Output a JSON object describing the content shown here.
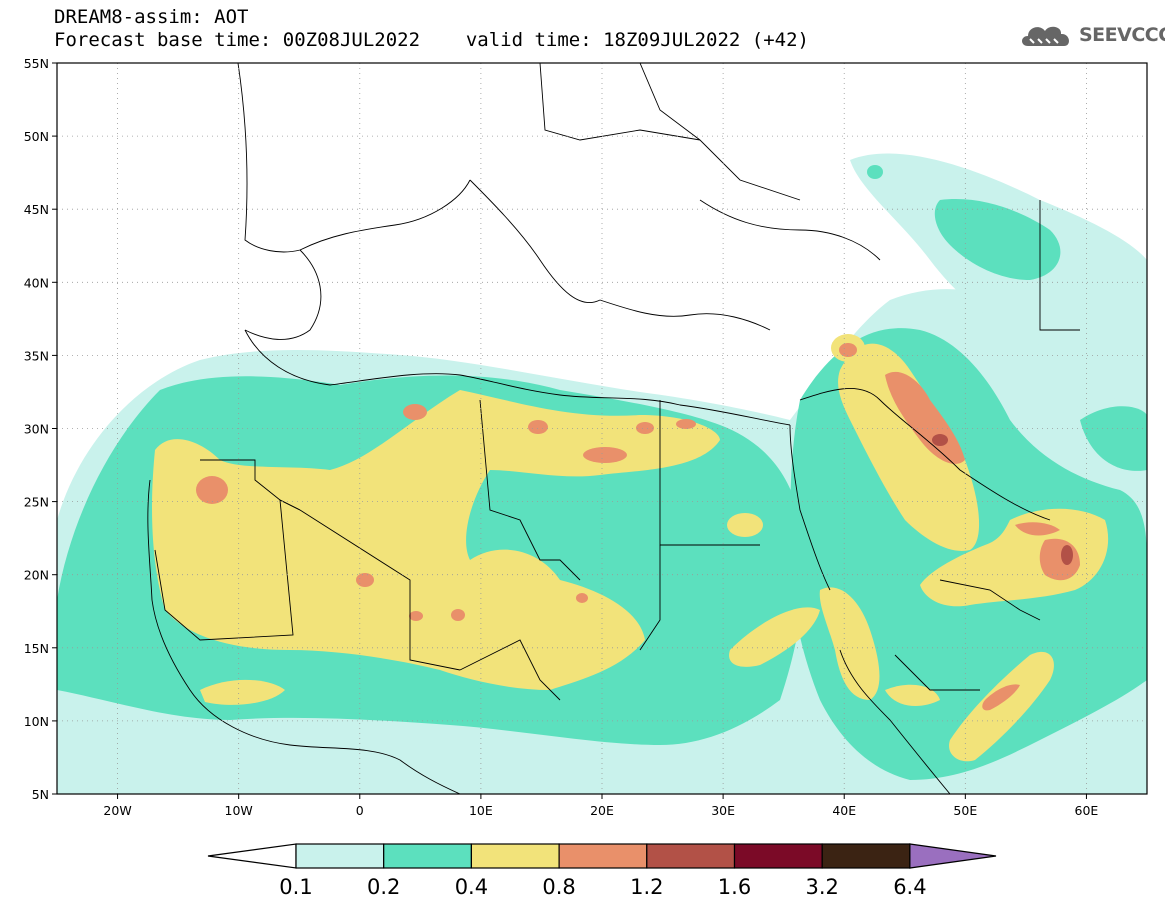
{
  "header": {
    "line1": "DREAM8-assim: AOT",
    "base_time_label": "Forecast base time: 00Z08JUL2022",
    "valid_time_label": "valid time: 18Z09JUL2022 (+42)"
  },
  "logo": {
    "text": "SEEVCCC",
    "icon": "cloud-icon"
  },
  "map": {
    "lon_range": [
      -25,
      65
    ],
    "lat_range": [
      5,
      55
    ],
    "lat_ticks": [
      "55N",
      "50N",
      "45N",
      "40N",
      "35N",
      "30N",
      "25N",
      "20N",
      "15N",
      "10N",
      "5N"
    ],
    "lon_ticks": [
      "20W",
      "10W",
      "0",
      "10E",
      "20E",
      "30E",
      "40E",
      "50E",
      "60E"
    ]
  },
  "colorbar": {
    "labels": [
      "0.1",
      "0.2",
      "0.4",
      "0.8",
      "1.2",
      "1.6",
      "3.2",
      "6.4"
    ],
    "colors": {
      "below": "#ffffff",
      "b1": "#c9f2ec",
      "b2": "#5ce0be",
      "b3": "#f2e37a",
      "b4": "#e9906a",
      "b5": "#b25147",
      "b6": "#7b0a27",
      "b7": "#3b2313",
      "above": "#9a6fbf"
    }
  }
}
